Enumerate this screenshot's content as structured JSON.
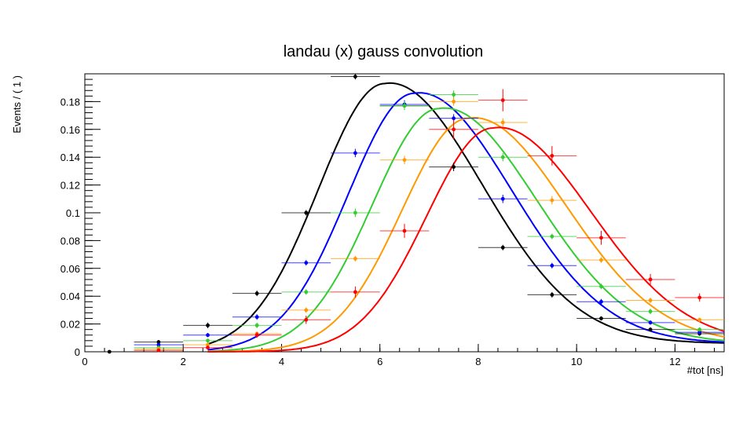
{
  "chart_data": {
    "type": "scatter",
    "title": "landau (x) gauss convolution",
    "xlabel": "#tot [ns]",
    "ylabel": "Events / ( 1 )",
    "xlim": [
      0,
      13
    ],
    "ylim": [
      0,
      0.2
    ],
    "x_ticks": [
      0,
      2,
      4,
      6,
      8,
      10,
      12
    ],
    "x_tick_labels": [
      "0",
      "2",
      "4",
      "6",
      "8",
      "10",
      "12"
    ],
    "y_ticks": [
      0,
      0.02,
      0.04,
      0.06,
      0.08,
      0.1,
      0.12,
      0.14,
      0.16,
      0.18
    ],
    "y_tick_labels": [
      "0",
      "0.02",
      "0.04",
      "0.06",
      "0.08",
      "0.1",
      "0.12",
      "0.14",
      "0.16",
      "0.18"
    ],
    "grid": false,
    "legend": "none",
    "series": [
      {
        "color": "#000000",
        "x": [
          0.5,
          1.5,
          2.5,
          3.5,
          4.5,
          5.5,
          6.5,
          7.5,
          8.5,
          9.5,
          10.5,
          11.5,
          12.5
        ],
        "y": [
          0.0,
          0.007,
          0.019,
          0.042,
          0.1,
          0.198,
          0.177,
          0.133,
          0.075,
          0.041,
          0.024,
          0.016,
          0.013
        ],
        "y_err": [
          0.0,
          0.0015,
          0.002,
          0.002,
          0.002,
          0.002,
          0.002,
          0.003,
          0.002,
          0.002,
          0.0015,
          0.0015,
          0.0015
        ],
        "fit_peak": [
          6.1,
          0.193
        ]
      },
      {
        "color": "#0000ff",
        "x": [
          1.5,
          2.5,
          3.5,
          4.5,
          5.5,
          6.5,
          7.5,
          8.5,
          9.5,
          10.5,
          11.5,
          12.5
        ],
        "y": [
          0.005,
          0.012,
          0.025,
          0.064,
          0.143,
          0.178,
          0.168,
          0.11,
          0.062,
          0.036,
          0.021,
          0.014
        ],
        "y_err": [
          0.001,
          0.0015,
          0.002,
          0.002,
          0.003,
          0.003,
          0.003,
          0.003,
          0.002,
          0.002,
          0.0015,
          0.0015
        ],
        "fit_peak": [
          6.7,
          0.186
        ]
      },
      {
        "color": "#33cc33",
        "x": [
          1.5,
          2.5,
          3.5,
          4.5,
          5.5,
          6.5,
          7.5,
          8.5,
          9.5,
          10.5,
          11.5,
          12.5
        ],
        "y": [
          0.003,
          0.008,
          0.019,
          0.043,
          0.1,
          0.177,
          0.185,
          0.14,
          0.083,
          0.047,
          0.029,
          0.016
        ],
        "y_err": [
          0.001,
          0.0015,
          0.002,
          0.002,
          0.003,
          0.003,
          0.003,
          0.003,
          0.002,
          0.002,
          0.002,
          0.0015
        ],
        "fit_peak": [
          7.2,
          0.175
        ]
      },
      {
        "color": "#ff9900",
        "x": [
          1.5,
          2.5,
          3.5,
          4.5,
          5.5,
          6.5,
          7.5,
          8.5,
          9.5,
          10.5,
          11.5,
          12.5
        ],
        "y": [
          0.002,
          0.005,
          0.013,
          0.03,
          0.067,
          0.138,
          0.18,
          0.165,
          0.109,
          0.066,
          0.037,
          0.023
        ],
        "y_err": [
          0.001,
          0.0015,
          0.0015,
          0.002,
          0.002,
          0.003,
          0.003,
          0.003,
          0.003,
          0.002,
          0.002,
          0.0015
        ],
        "fit_peak": [
          7.8,
          0.168
        ]
      },
      {
        "color": "#ff0000",
        "x": [
          1.5,
          2.5,
          3.5,
          4.5,
          5.5,
          6.5,
          7.5,
          8.5,
          9.5,
          10.5,
          11.5,
          12.5
        ],
        "y": [
          0.001,
          0.003,
          0.012,
          0.023,
          0.043,
          0.087,
          0.16,
          0.181,
          0.141,
          0.082,
          0.052,
          0.039
        ],
        "y_err": [
          0.0005,
          0.001,
          0.002,
          0.003,
          0.004,
          0.005,
          0.007,
          0.008,
          0.007,
          0.005,
          0.004,
          0.003
        ],
        "fit_peak": [
          8.3,
          0.161
        ]
      }
    ]
  }
}
